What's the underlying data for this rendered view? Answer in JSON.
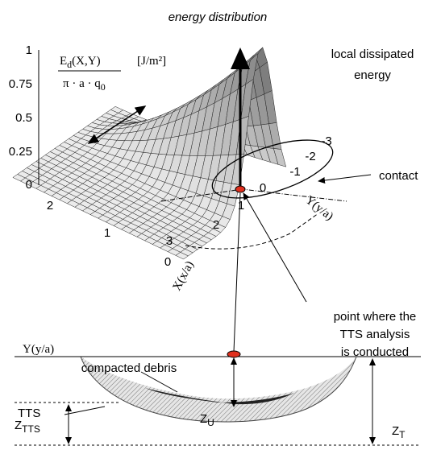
{
  "title": "energy distribution",
  "formula": {
    "numerator": "E",
    "numerator_sub": "d",
    "numerator_args": "(X,Y)",
    "denominator": "π · a · q",
    "denominator_sub": "0",
    "unit": "[J/m²]"
  },
  "z_axis": {
    "ticks": [
      "1",
      "0.75",
      "0.5",
      "0.25",
      "0"
    ]
  },
  "x_axis": {
    "label": "X(x/a)",
    "ticks": [
      "2",
      "1",
      "0"
    ]
  },
  "y_axis": {
    "label": "Y(y/a)",
    "ticks": [
      "-3",
      "-2",
      "-1",
      "0",
      "1",
      "2",
      "3"
    ]
  },
  "annotations": {
    "energy": [
      "local dissipated",
      "energy"
    ],
    "contact": "contact",
    "point": [
      "point where the",
      "TTS analysis",
      "is conducted"
    ]
  },
  "section": {
    "debris": "compacted debris",
    "axis": "Y(y/a)",
    "tts": "TTS",
    "zu": "Z",
    "zu_sub": "U",
    "zt": "Z",
    "zt_sub": "T",
    "ztts": "Z",
    "ztts_sub": "TTS"
  }
}
